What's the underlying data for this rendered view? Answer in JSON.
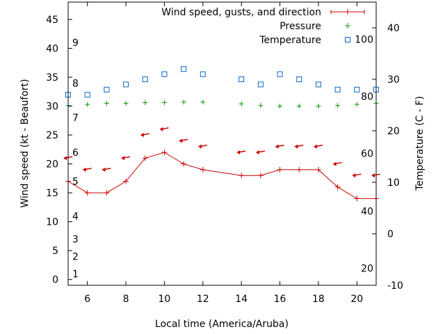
{
  "chart_data": {
    "type": "line",
    "xlabel": "Local time (America/Aruba)",
    "ylabel_left": "Wind speed (kt - Beaufort)",
    "ylabel_right": "Temperature (C - F)",
    "xlim": [
      5,
      21
    ],
    "ylim_left": [
      -1,
      48
    ],
    "ylim_right": [
      -10,
      45
    ],
    "x_ticks": [
      6,
      8,
      10,
      12,
      14,
      16,
      18,
      20
    ],
    "y_left_ticks": [
      0,
      5,
      10,
      15,
      20,
      25,
      30,
      35,
      40,
      45
    ],
    "y_right_ticks": [
      -10,
      0,
      10,
      20,
      30,
      40
    ],
    "beaufort_labels": [
      {
        "label": "1",
        "kt": 1
      },
      {
        "label": "2",
        "kt": 4
      },
      {
        "label": "3",
        "kt": 7
      },
      {
        "label": "4",
        "kt": 11
      },
      {
        "label": "5",
        "kt": 17
      },
      {
        "label": "6",
        "kt": 22
      },
      {
        "label": "7",
        "kt": 28
      },
      {
        "label": "8",
        "kt": 34
      },
      {
        "label": "9",
        "kt": 41
      }
    ],
    "fahrenheit_labels": [
      {
        "label": "20",
        "c": -6.7
      },
      {
        "label": "40",
        "c": 4.4
      },
      {
        "label": "60",
        "c": 15.6
      },
      {
        "label": "80",
        "c": 26.7
      },
      {
        "label": "100",
        "c": 37.8
      }
    ],
    "legend": [
      {
        "label": "Wind speed, gusts, and direction",
        "color": "#cc0000",
        "symbol": "line-plus"
      },
      {
        "label": "Pressure",
        "color": "#009900",
        "symbol": "plus"
      },
      {
        "label": "Temperature",
        "color": "#0066cc",
        "symbol": "square"
      }
    ],
    "series": [
      {
        "name": "Wind speed",
        "axis": "left",
        "x": [
          5,
          6,
          7,
          8,
          9,
          10,
          11,
          12,
          14,
          15,
          16,
          17,
          18,
          19,
          20,
          21
        ],
        "values": [
          17,
          15,
          15,
          17,
          21,
          22,
          20,
          19,
          18,
          18,
          19,
          19,
          19,
          16,
          14,
          14
        ]
      },
      {
        "name": "Wind direction",
        "axis": "left",
        "x": [
          5,
          6,
          7,
          8,
          9,
          10,
          11,
          12,
          14,
          15,
          16,
          17,
          18,
          19,
          20,
          21
        ],
        "values": [
          21,
          19,
          19,
          21,
          25,
          26,
          24,
          23,
          22,
          22,
          23,
          23,
          23,
          20,
          18,
          18
        ]
      },
      {
        "name": "Pressure",
        "axis": "left",
        "x": [
          5,
          6,
          7,
          8,
          9,
          10,
          11,
          12,
          14,
          15,
          16,
          17,
          18,
          19,
          20,
          21
        ],
        "values": [
          30.1,
          30.3,
          30.5,
          30.5,
          30.6,
          30.6,
          30.7,
          30.7,
          30.4,
          30.1,
          30.0,
          30.0,
          30.0,
          30.1,
          30.3,
          30.5
        ]
      },
      {
        "name": "Temperature",
        "axis": "right",
        "x": [
          5,
          6,
          7,
          8,
          9,
          10,
          11,
          12,
          14,
          15,
          16,
          17,
          18,
          19,
          20,
          21
        ],
        "values": [
          27,
          27,
          28,
          29,
          30,
          31,
          32,
          31,
          30,
          29,
          31,
          30,
          29,
          28,
          28,
          28
        ]
      }
    ]
  }
}
